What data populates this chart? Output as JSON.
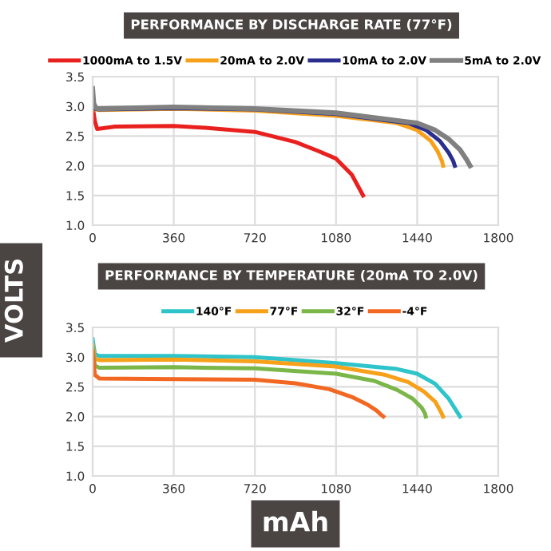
{
  "chart_data": [
    {
      "type": "line",
      "title": "PERFORMANCE BY DISCHARGE RATE (77°F)",
      "ylabel": "VOLTS",
      "xlim": [
        0,
        1800
      ],
      "ylim": [
        1.0,
        3.5
      ],
      "xticks": [
        0,
        360,
        720,
        1080,
        1440,
        1800
      ],
      "yticks": [
        {
          "value": 1,
          "label": "1.0"
        },
        1.5,
        {
          "value": 2,
          "label": "2.0"
        },
        2.5,
        {
          "value": 3,
          "label": "3.0"
        },
        3.5
      ],
      "grid": true,
      "legend": "top",
      "marker": "none",
      "line_style": "solid",
      "series": [
        {
          "name": "1000mA to 1.5V",
          "color": "#e8211f",
          "x": [
            0,
            10,
            20,
            100,
            360,
            500,
            720,
            900,
            1000,
            1080,
            1150,
            1200
          ],
          "values": [
            3.0,
            2.75,
            2.62,
            2.66,
            2.67,
            2.64,
            2.57,
            2.4,
            2.25,
            2.12,
            1.85,
            1.5
          ]
        },
        {
          "name": "20mA to 2.0V",
          "color": "#f7a11a",
          "x": [
            0,
            10,
            30,
            360,
            720,
            1080,
            1350,
            1440,
            1500,
            1530,
            1550,
            1555
          ],
          "values": [
            3.0,
            2.95,
            2.94,
            2.96,
            2.93,
            2.84,
            2.72,
            2.6,
            2.42,
            2.25,
            2.08,
            2.0
          ]
        },
        {
          "name": "10mA to 2.0V",
          "color": "#2a2e8f",
          "x": [
            0,
            10,
            30,
            360,
            720,
            1080,
            1400,
            1480,
            1540,
            1580,
            1600,
            1607
          ],
          "values": [
            3.05,
            2.96,
            2.95,
            2.97,
            2.95,
            2.87,
            2.72,
            2.6,
            2.42,
            2.22,
            2.08,
            2.0
          ]
        },
        {
          "name": "5mA to 2.0V",
          "color": "#808080",
          "x": [
            0,
            5,
            15,
            30,
            360,
            720,
            1080,
            1440,
            1520,
            1580,
            1630,
            1660,
            1675
          ],
          "values": [
            3.3,
            3.05,
            2.97,
            2.96,
            2.99,
            2.96,
            2.89,
            2.72,
            2.6,
            2.45,
            2.27,
            2.1,
            2.0
          ]
        }
      ]
    },
    {
      "type": "line",
      "title": "PERFORMANCE BY TEMPERATURE (20mA TO 2.0V)",
      "xlabel": "mAh",
      "xlim": [
        0,
        1800
      ],
      "ylim": [
        1.0,
        3.5
      ],
      "xticks": [
        0,
        360,
        720,
        1080,
        1440,
        1800
      ],
      "yticks": [
        {
          "value": 1,
          "label": "1.0"
        },
        1.5,
        {
          "value": 2,
          "label": "2.0"
        },
        2.5,
        {
          "value": 3,
          "label": "3.0"
        },
        3.5
      ],
      "grid": true,
      "legend": "top",
      "marker": "none",
      "line_style": "solid",
      "series": [
        {
          "name": "140°F",
          "color": "#2ec4c9",
          "x": [
            0,
            10,
            30,
            360,
            720,
            1080,
            1350,
            1440,
            1520,
            1580,
            1610,
            1630
          ],
          "values": [
            3.3,
            3.05,
            3.02,
            3.02,
            3.0,
            2.9,
            2.8,
            2.72,
            2.55,
            2.3,
            2.12,
            2.0
          ]
        },
        {
          "name": "77°F",
          "color": "#f7a11a",
          "x": [
            0,
            10,
            30,
            360,
            720,
            1080,
            1300,
            1400,
            1470,
            1520,
            1545,
            1555
          ],
          "values": [
            3.2,
            2.97,
            2.95,
            2.96,
            2.93,
            2.84,
            2.7,
            2.58,
            2.42,
            2.25,
            2.08,
            2.0
          ]
        },
        {
          "name": "32°F",
          "color": "#7ab648",
          "x": [
            0,
            10,
            30,
            360,
            720,
            1080,
            1250,
            1350,
            1420,
            1460,
            1475,
            1478
          ],
          "values": [
            3.15,
            2.86,
            2.82,
            2.83,
            2.81,
            2.72,
            2.6,
            2.45,
            2.3,
            2.15,
            2.05,
            2.0
          ]
        },
        {
          "name": "-4°F",
          "color": "#f26722",
          "x": [
            0,
            10,
            30,
            360,
            720,
            900,
            1050,
            1150,
            1220,
            1260,
            1280,
            1290
          ],
          "values": [
            3.1,
            2.7,
            2.64,
            2.63,
            2.62,
            2.56,
            2.46,
            2.33,
            2.2,
            2.1,
            2.03,
            2.0
          ]
        }
      ]
    }
  ]
}
